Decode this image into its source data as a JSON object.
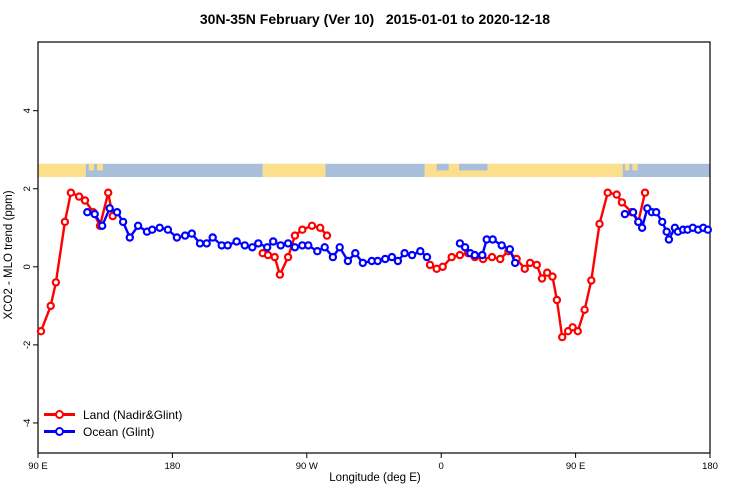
{
  "figure": {
    "title": "30N-35N February (Ver 10)   2015-01-01 to 2020-12-18"
  },
  "chart_data": {
    "type": "line",
    "title": "30N-35N February (Ver 10)   2015-01-01 to 2020-12-18",
    "xlabel": "Longitude (deg E)",
    "ylabel": "XCO2 - MLO trend (ppm)",
    "xlim": [
      90,
      540
    ],
    "ylim": [
      -4.77,
      5.76
    ],
    "grid": false,
    "x_ticks": [
      {
        "lon": 90,
        "label": "90 E"
      },
      {
        "lon": 180,
        "label": "180"
      },
      {
        "lon": 270,
        "label": "90 W"
      },
      {
        "lon": 360,
        "label": "0"
      },
      {
        "lon": 450,
        "label": "90 E"
      },
      {
        "lon": 540,
        "label": "180"
      }
    ],
    "y_ticks": [
      {
        "value": -4,
        "label": "-4"
      },
      {
        "value": -2,
        "label": "-2"
      },
      {
        "value": 0,
        "label": "0"
      },
      {
        "value": 2,
        "label": "2"
      },
      {
        "value": 4,
        "label": "4"
      }
    ],
    "legend": {
      "position": "bottom-left"
    },
    "map_band": {
      "y_range_ppm": [
        2.3,
        2.64
      ],
      "land_color": "#FBDF8C",
      "ocean_color": "#A9BEDB",
      "segments": [
        {
          "from": 90,
          "to": 122,
          "type": "land"
        },
        {
          "from": 122,
          "to": 240.5,
          "type": "ocean"
        },
        {
          "from": 240.5,
          "to": 282.5,
          "type": "land"
        },
        {
          "from": 282.5,
          "to": 349,
          "type": "ocean"
        },
        {
          "from": 349,
          "to": 481.5,
          "type": "land"
        },
        {
          "from": 481.5,
          "to": 540,
          "type": "ocean"
        }
      ],
      "islands": [
        {
          "from": 124,
          "to": 127.5
        },
        {
          "from": 129.5,
          "to": 133.5
        },
        {
          "from": 483,
          "to": 486
        },
        {
          "from": 488,
          "to": 491.5
        }
      ],
      "seas": [
        {
          "from": 357,
          "to": 365
        },
        {
          "from": 372,
          "to": 391
        }
      ]
    },
    "series": [
      {
        "id": "land",
        "name": "Land (Nadir&Glint)",
        "color": "#FF0000",
        "marker": "open-circle",
        "segments": [
          [
            [
              92,
              -1.65
            ],
            [
              98.5,
              -1.0
            ],
            [
              102,
              -0.4
            ],
            [
              108,
              1.15
            ],
            [
              112,
              1.9
            ],
            [
              117.5,
              1.8
            ],
            [
              121.5,
              1.7
            ],
            [
              127,
              1.4
            ],
            [
              131.5,
              1.05
            ],
            [
              137,
              1.9
            ],
            [
              140,
              1.3
            ]
          ],
          [
            [
              240.5,
              0.35
            ],
            [
              244,
              0.3
            ],
            [
              248.5,
              0.25
            ],
            [
              252,
              -0.2
            ],
            [
              257.5,
              0.25
            ],
            [
              262,
              0.8
            ],
            [
              267,
              0.95
            ],
            [
              273.5,
              1.05
            ],
            [
              279,
              1.0
            ],
            [
              283.5,
              0.8
            ]
          ],
          [
            [
              352.5,
              0.05
            ],
            [
              357,
              -0.05
            ],
            [
              361,
              0.0
            ],
            [
              367,
              0.25
            ],
            [
              372.5,
              0.3
            ],
            [
              378,
              0.35
            ],
            [
              382.5,
              0.25
            ],
            [
              388,
              0.2
            ],
            [
              394,
              0.25
            ],
            [
              399.5,
              0.2
            ],
            [
              405,
              0.4
            ],
            [
              410.5,
              0.2
            ],
            [
              416,
              -0.05
            ],
            [
              419.5,
              0.1
            ],
            [
              424,
              0.05
            ],
            [
              427.5,
              -0.3
            ],
            [
              431,
              -0.15
            ],
            [
              434.5,
              -0.25
            ],
            [
              437.5,
              -0.85
            ],
            [
              441,
              -1.8
            ],
            [
              445,
              -1.65
            ],
            [
              448,
              -1.55
            ],
            [
              451.5,
              -1.65
            ],
            [
              456,
              -1.1
            ],
            [
              460.5,
              -0.35
            ],
            [
              466,
              1.1
            ],
            [
              471.5,
              1.9
            ],
            [
              477.5,
              1.85
            ],
            [
              481,
              1.65
            ],
            [
              487.5,
              1.4
            ],
            [
              492,
              1.15
            ],
            [
              496.5,
              1.9
            ]
          ]
        ]
      },
      {
        "id": "ocean",
        "name": "Ocean (Glint)",
        "color": "#0000FF",
        "marker": "open-circle",
        "segments": [
          [
            [
              123,
              1.4
            ],
            [
              128,
              1.35
            ],
            [
              133,
              1.05
            ],
            [
              138,
              1.5
            ],
            [
              143,
              1.4
            ],
            [
              147,
              1.15
            ],
            [
              151.5,
              0.75
            ],
            [
              157,
              1.05
            ],
            [
              163,
              0.9
            ],
            [
              166.5,
              0.95
            ],
            [
              171.5,
              1.0
            ],
            [
              177,
              0.95
            ],
            [
              183,
              0.75
            ],
            [
              188.5,
              0.8
            ],
            [
              193,
              0.85
            ],
            [
              198.5,
              0.6
            ],
            [
              203,
              0.6
            ],
            [
              207,
              0.75
            ],
            [
              213,
              0.55
            ],
            [
              217,
              0.55
            ],
            [
              223,
              0.65
            ],
            [
              228.5,
              0.55
            ],
            [
              233.5,
              0.5
            ],
            [
              237.5,
              0.6
            ],
            [
              243.5,
              0.5
            ],
            [
              247.5,
              0.65
            ],
            [
              252.5,
              0.55
            ],
            [
              257.5,
              0.6
            ],
            [
              262,
              0.5
            ],
            [
              267,
              0.55
            ],
            [
              271,
              0.55
            ],
            [
              277,
              0.4
            ],
            [
              282,
              0.5
            ],
            [
              287.5,
              0.25
            ],
            [
              292,
              0.5
            ],
            [
              297.5,
              0.15
            ],
            [
              302.5,
              0.35
            ],
            [
              307.5,
              0.1
            ],
            [
              313.5,
              0.15
            ],
            [
              317.5,
              0.15
            ],
            [
              322.5,
              0.2
            ],
            [
              327,
              0.25
            ],
            [
              331,
              0.15
            ],
            [
              335.5,
              0.35
            ],
            [
              340.5,
              0.3
            ],
            [
              346,
              0.4
            ],
            [
              350.5,
              0.25
            ]
          ],
          [
            [
              372.5,
              0.6
            ],
            [
              376,
              0.5
            ],
            [
              379.5,
              0.35
            ],
            [
              382.5,
              0.3
            ],
            [
              387.5,
              0.3
            ],
            [
              390.5,
              0.7
            ],
            [
              394.5,
              0.7
            ],
            [
              400.5,
              0.55
            ],
            [
              406,
              0.45
            ],
            [
              409.5,
              0.1
            ]
          ],
          [
            [
              483,
              1.35
            ],
            [
              488.5,
              1.4
            ],
            [
              492,
              1.15
            ],
            [
              494.5,
              1.0
            ],
            [
              498,
              1.5
            ],
            [
              501,
              1.4
            ],
            [
              504,
              1.4
            ],
            [
              508,
              1.15
            ],
            [
              511,
              0.9
            ],
            [
              512.5,
              0.7
            ],
            [
              516.5,
              1.0
            ],
            [
              518.5,
              0.9
            ],
            [
              522,
              0.95
            ],
            [
              525,
              0.95
            ],
            [
              528.5,
              1.0
            ],
            [
              532,
              0.95
            ],
            [
              535.5,
              1.0
            ],
            [
              538.5,
              0.95
            ]
          ]
        ]
      }
    ]
  }
}
